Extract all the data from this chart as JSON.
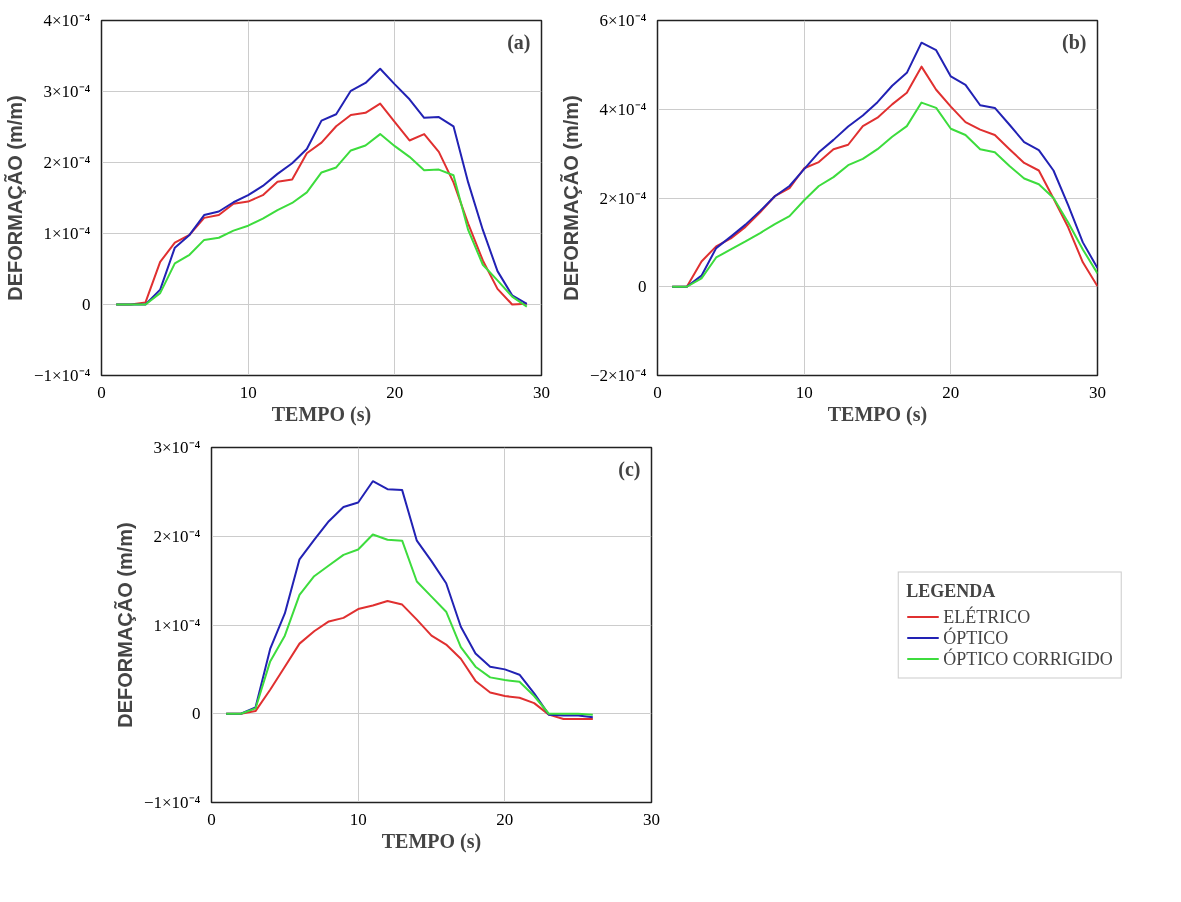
{
  "chart_data": [
    {
      "type": "line",
      "annotations": [
        "(a)"
      ],
      "xlabel": "TEMPO (s)",
      "ylabel": "DEFORMAÇÃO (m/m)",
      "xlim": [
        0,
        30
      ],
      "ylim": [
        -0.0001,
        0.0004
      ],
      "xticks": [
        0,
        10,
        20,
        30
      ],
      "yticks": [
        {
          "value": -0.0001,
          "label": "−1×10⁻⁴"
        },
        0,
        {
          "value": 0.0001,
          "label": "1×10⁻⁴"
        },
        {
          "value": 0.0002,
          "label": "2×10⁻⁴"
        },
        {
          "value": 0.0003,
          "label": "3×10⁻⁴"
        },
        {
          "value": 0.0004,
          "label": "4×10⁻⁴"
        }
      ],
      "grid": true,
      "x": [
        1,
        2,
        3,
        4,
        5,
        6,
        7,
        8,
        9,
        10,
        11,
        12,
        13,
        14,
        15,
        16,
        17,
        18,
        19,
        20,
        21,
        22,
        23,
        24,
        25,
        26,
        27,
        28,
        29
      ],
      "series": [
        {
          "color": "#e03030",
          "values": [
            0,
            0,
            3e-06,
            6e-05,
            8.7e-05,
            9.8e-05,
            0.000122,
            0.000126,
            0.000142,
            0.000145,
            0.000154,
            0.000173,
            0.000176,
            0.000213,
            0.000228,
            0.000251,
            0.000267,
            0.00027,
            0.000283,
            0.000257,
            0.000231,
            0.00024,
            0.000215,
            0.000172,
            0.000114,
            6.2e-05,
            2.2e-05,
            0,
            1e-06
          ]
        },
        {
          "color": "#2222b4",
          "values": [
            0,
            0,
            0,
            2.1e-05,
            8e-05,
            9.8e-05,
            0.000126,
            0.000131,
            0.000144,
            0.000154,
            0.000167,
            0.000184,
            0.000199,
            0.000219,
            0.000259,
            0.000268,
            0.000301,
            0.000312,
            0.000332,
            0.00031,
            0.000289,
            0.000263,
            0.000264,
            0.000251,
            0.000172,
            0.000105,
            4.7e-05,
            1.3e-05,
            1e-06
          ]
        },
        {
          "color": "#3ddc3d",
          "values": [
            0,
            0,
            0,
            1.6e-05,
            5.8e-05,
            7e-05,
            9.1e-05,
            9.4e-05,
            0.000104,
            0.000111,
            0.000121,
            0.000133,
            0.000143,
            0.000158,
            0.000186,
            0.000193,
            0.000217,
            0.000224,
            0.00024,
            0.000223,
            0.000208,
            0.000189,
            0.00019,
            0.000182,
            0.000105,
            5.6e-05,
            3.4e-05,
            1.1e-05,
            -3e-06
          ]
        }
      ]
    },
    {
      "type": "line",
      "annotations": [
        "(b)"
      ],
      "xlabel": "TEMPO (s)",
      "ylabel": "DEFORMAÇÃO (m/m)",
      "xlim": [
        0,
        30
      ],
      "ylim": [
        -0.0002,
        0.0006
      ],
      "xticks": [
        0,
        10,
        20,
        30
      ],
      "yticks": [
        {
          "value": -0.0002,
          "label": "−2×10⁻⁴"
        },
        0,
        {
          "value": 0.0002,
          "label": "2×10⁻⁴"
        },
        {
          "value": 0.0004,
          "label": "4×10⁻⁴"
        },
        {
          "value": 0.0006,
          "label": "6×10⁻⁴"
        }
      ],
      "grid": true,
      "x": [
        1,
        2,
        3,
        4,
        5,
        6,
        7,
        8,
        9,
        10,
        11,
        12,
        13,
        14,
        15,
        16,
        17,
        18,
        19,
        20,
        21,
        22,
        23,
        24,
        25,
        26,
        27,
        28,
        29,
        30
      ],
      "series": [
        {
          "color": "#e03030",
          "values": [
            0,
            0,
            5.7e-05,
            9.1e-05,
            0.000109,
            0.000135,
            0.000168,
            0.000204,
            0.000222,
            0.000267,
            0.000281,
            0.00031,
            0.00032,
            0.000362,
            0.000381,
            0.000411,
            0.000437,
            0.000496,
            0.000444,
            0.000406,
            0.000371,
            0.000354,
            0.000342,
            0.00031,
            0.000279,
            0.000262,
            0.000199,
            0.000134,
            5.5e-05,
            1e-06
          ]
        },
        {
          "color": "#2222b4",
          "values": [
            0,
            0,
            2.5e-05,
            8.7e-05,
            0.000113,
            0.00014,
            0.000171,
            0.000204,
            0.000227,
            0.000265,
            0.000303,
            0.000331,
            0.000361,
            0.000386,
            0.000416,
            0.000453,
            0.000482,
            0.00055,
            0.000533,
            0.000474,
            0.000455,
            0.000409,
            0.000403,
            0.000365,
            0.000326,
            0.000308,
            0.000262,
            0.000184,
            0.0001,
            4.2e-05
          ]
        },
        {
          "color": "#3ddc3d",
          "values": [
            0,
            0,
            1.9e-05,
            6.6e-05,
            8.4e-05,
            0.000102,
            0.000121,
            0.000141,
            0.000159,
            0.000195,
            0.000227,
            0.000247,
            0.000274,
            0.000288,
            0.00031,
            0.000338,
            0.000362,
            0.000415,
            0.000403,
            0.000356,
            0.000342,
            0.00031,
            0.000303,
            0.000272,
            0.000244,
            0.000231,
            0.0002,
            0.000145,
            8.4e-05,
            3e-05
          ]
        }
      ]
    },
    {
      "type": "line",
      "annotations": [
        "(c)"
      ],
      "xlabel": "TEMPO (s)",
      "ylabel": "DEFORMAÇÃO (m/m)",
      "legend_title": "LEGENDA",
      "legend": "right",
      "xlim": [
        0,
        30
      ],
      "ylim": [
        -0.0001,
        0.0003
      ],
      "xticks": [
        0,
        10,
        20,
        30
      ],
      "yticks": [
        {
          "value": -0.0001,
          "label": "−1×10⁻⁴"
        },
        0,
        {
          "value": 0.0001,
          "label": "1×10⁻⁴"
        },
        {
          "value": 0.0002,
          "label": "2×10⁻⁴"
        },
        {
          "value": 0.0003,
          "label": "3×10⁻⁴"
        }
      ],
      "grid": true,
      "x": [
        1,
        2,
        3,
        4,
        5,
        6,
        7,
        8,
        9,
        10,
        11,
        12,
        13,
        14,
        15,
        16,
        17,
        18,
        19,
        20,
        21,
        22,
        23,
        24,
        25,
        26
      ],
      "series": [
        {
          "name": "ELÉTRICO",
          "color": "#e03030",
          "values": [
            0,
            0,
            3e-06,
            2.7e-05,
            5.3e-05,
            7.9e-05,
            9.3e-05,
            0.000104,
            0.000108,
            0.000118,
            0.000122,
            0.000127,
            0.000123,
            0.000106,
            8.8e-05,
            7.8e-05,
            6.2e-05,
            3.7e-05,
            2.4e-05,
            2e-05,
            1.8e-05,
            1.2e-05,
            -1e-06,
            -6e-06,
            -6e-06,
            -6e-06
          ]
        },
        {
          "name": "ÓPTICO",
          "color": "#2222b4",
          "values": [
            0,
            0,
            7e-06,
            7.3e-05,
            0.000113,
            0.000174,
            0.000196,
            0.000217,
            0.000233,
            0.000238,
            0.000262,
            0.000253,
            0.000252,
            0.000195,
            0.000172,
            0.000147,
            9.8e-05,
            6.8e-05,
            5.3e-05,
            5e-05,
            4.4e-05,
            2.3e-05,
            -1e-06,
            -2e-06,
            -2e-06,
            -4e-06
          ]
        },
        {
          "name": "ÓPTICO CORRIGIDO",
          "color": "#3ddc3d",
          "values": [
            0,
            0,
            6e-06,
            5.9e-05,
            8.8e-05,
            0.000134,
            0.000155,
            0.000167,
            0.000179,
            0.000185,
            0.000202,
            0.000196,
            0.000195,
            0.000149,
            0.000132,
            0.000115,
            7.5e-05,
            5.3e-05,
            4.1e-05,
            3.8e-05,
            3.6e-05,
            2e-05,
            0,
            0,
            0,
            -1e-06
          ]
        }
      ]
    }
  ]
}
